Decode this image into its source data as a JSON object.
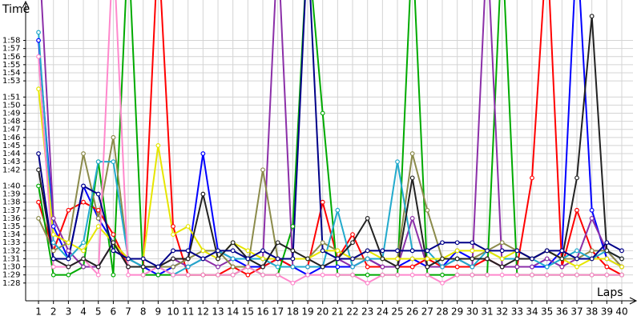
{
  "chart_data": {
    "type": "line",
    "y_title": "Time",
    "x_title": "Laps",
    "x": [
      1,
      2,
      3,
      4,
      5,
      6,
      7,
      8,
      9,
      10,
      11,
      12,
      13,
      14,
      15,
      16,
      17,
      18,
      19,
      20,
      21,
      22,
      23,
      24,
      25,
      26,
      27,
      28,
      29,
      30,
      31,
      32,
      33,
      34,
      35,
      36,
      37,
      38,
      39,
      40
    ],
    "xlim": [
      0.14,
      40.75
    ],
    "xticks": [
      1,
      2,
      3,
      4,
      5,
      6,
      7,
      8,
      9,
      10,
      11,
      12,
      13,
      14,
      15,
      16,
      17,
      18,
      19,
      20,
      21,
      22,
      23,
      24,
      25,
      26,
      27,
      28,
      29,
      30,
      31,
      32,
      33,
      34,
      35,
      36,
      37,
      38,
      39,
      40
    ],
    "ylim": [
      85.8,
      123
    ],
    "yticks": [
      {
        "value": 88,
        "label": "1:28"
      },
      {
        "value": 89,
        "label": "1:29"
      },
      {
        "value": 90,
        "label": "1:30"
      },
      {
        "value": 91,
        "label": "1:31"
      },
      {
        "value": 92,
        "label": "1:32"
      },
      {
        "value": 93,
        "label": "1:33"
      },
      {
        "value": 94,
        "label": "1:34"
      },
      {
        "value": 95,
        "label": "1:35"
      },
      {
        "value": 96,
        "label": "1:36"
      },
      {
        "value": 97,
        "label": "1:37"
      },
      {
        "value": 98,
        "label": "1:38"
      },
      {
        "value": 99,
        "label": "1:39"
      },
      {
        "value": 100,
        "label": "1:40"
      },
      {
        "value": 102,
        "label": "1:42"
      },
      {
        "value": 103,
        "label": "1:43"
      },
      {
        "value": 104,
        "label": "1:44"
      },
      {
        "value": 105,
        "label": "1:45"
      },
      {
        "value": 106,
        "label": "1:46"
      },
      {
        "value": 107,
        "label": "1:47"
      },
      {
        "value": 108,
        "label": "1:48"
      },
      {
        "value": 109,
        "label": "1:49"
      },
      {
        "value": 110,
        "label": "1:50"
      },
      {
        "value": 111,
        "label": "1:51"
      },
      {
        "value": 113,
        "label": "1:53"
      },
      {
        "value": 114,
        "label": "1:54"
      },
      {
        "value": 115,
        "label": "1:55"
      },
      {
        "value": 116,
        "label": "1:56"
      },
      {
        "value": 117,
        "label": "1:57"
      },
      {
        "value": 118,
        "label": "1:58"
      }
    ],
    "grid": true,
    "series": [
      {
        "color": "#0000ff",
        "values": [
          118,
          95,
          91,
          100,
          96,
          93,
          91,
          90,
          89,
          90,
          91,
          104,
          92,
          91,
          90,
          90,
          91,
          90,
          89,
          90,
          90,
          90,
          91,
          90,
          90,
          91,
          90,
          90,
          92,
          91,
          91,
          90,
          90,
          90,
          90,
          92,
          130,
          97,
          91,
          90
        ]
      },
      {
        "color": "#ff0000",
        "values": [
          98,
          92,
          97,
          98,
          97,
          94,
          90,
          90,
          130,
          95,
          89,
          89,
          89,
          90,
          89,
          90,
          91,
          90,
          90,
          98,
          91,
          94,
          90,
          90,
          90,
          90,
          91,
          90,
          90,
          90,
          91,
          90,
          90,
          101,
          130,
          90,
          97,
          92,
          90,
          89
        ]
      },
      {
        "color": "#00aa00",
        "values": [
          100,
          89,
          89,
          90,
          103,
          89,
          130,
          89,
          89,
          89,
          89,
          89,
          89,
          89,
          90,
          89,
          89,
          95,
          130,
          109,
          89,
          89,
          89,
          89,
          89,
          130,
          89,
          89,
          89,
          89,
          89,
          130,
          89,
          89,
          89,
          89,
          89,
          89,
          89,
          89
        ]
      },
      {
        "color": "#8b2fa8",
        "values": [
          130,
          96,
          92,
          90,
          90,
          93,
          90,
          90,
          90,
          91,
          90,
          91,
          90,
          91,
          91,
          91,
          130,
          90,
          90,
          90,
          91,
          90,
          91,
          90,
          90,
          96,
          90,
          90,
          91,
          90,
          130,
          90,
          90,
          90,
          91,
          90,
          91,
          96,
          92,
          90
        ]
      },
      {
        "color": "#8b8b4b",
        "values": [
          96,
          92,
          93,
          104,
          96,
          106,
          91,
          90,
          90,
          90,
          91,
          92,
          92,
          90,
          90,
          102,
          91,
          91,
          91,
          93,
          92,
          91,
          91,
          91,
          91,
          104,
          97,
          91,
          91,
          91,
          92,
          93,
          92,
          91,
          92,
          91,
          91,
          92,
          92,
          90
        ]
      },
      {
        "color": "#22aacc",
        "values": [
          119,
          93,
          91,
          93,
          103,
          103,
          91,
          90,
          90,
          89,
          90,
          91,
          92,
          91,
          91,
          91,
          90,
          90,
          90,
          90,
          97,
          90,
          91,
          91,
          103,
          92,
          92,
          90,
          91,
          90,
          92,
          91,
          91,
          91,
          90,
          91,
          92,
          91,
          92,
          91
        ]
      },
      {
        "color": "#e6e600",
        "values": [
          112,
          94,
          93,
          92,
          95,
          93,
          91,
          91,
          105,
          94,
          95,
          92,
          91,
          93,
          92,
          91,
          91,
          91,
          91,
          92,
          92,
          91,
          92,
          91,
          91,
          91,
          91,
          91,
          92,
          92,
          92,
          91,
          92,
          91,
          92,
          91,
          90,
          91,
          91,
          90
        ]
      },
      {
        "color": "#ff88cc",
        "values": [
          116,
          90,
          90,
          91,
          89,
          130,
          89,
          89,
          90,
          89,
          89,
          89,
          89,
          89,
          90,
          89,
          89,
          88,
          89,
          89,
          89,
          89,
          88,
          89,
          89,
          89,
          89,
          88,
          89,
          89,
          89,
          89,
          89,
          89,
          89,
          89,
          89,
          89,
          89,
          89
        ]
      },
      {
        "color": "#222222",
        "values": [
          102,
          91,
          90,
          91,
          90,
          93,
          90,
          90,
          90,
          91,
          91,
          99,
          91,
          93,
          91,
          90,
          93,
          92,
          91,
          90,
          91,
          93,
          96,
          91,
          90,
          101,
          90,
          91,
          91,
          91,
          91,
          90,
          91,
          91,
          92,
          91,
          101,
          121,
          92,
          91
        ]
      },
      {
        "color": "#000088",
        "values": [
          104,
          91,
          91,
          100,
          99,
          92,
          91,
          91,
          90,
          92,
          92,
          91,
          92,
          92,
          91,
          92,
          91,
          91,
          130,
          92,
          91,
          91,
          92,
          92,
          92,
          92,
          92,
          93,
          93,
          93,
          92,
          92,
          92,
          91,
          92,
          92,
          91,
          91,
          93,
          92
        ]
      }
    ]
  }
}
